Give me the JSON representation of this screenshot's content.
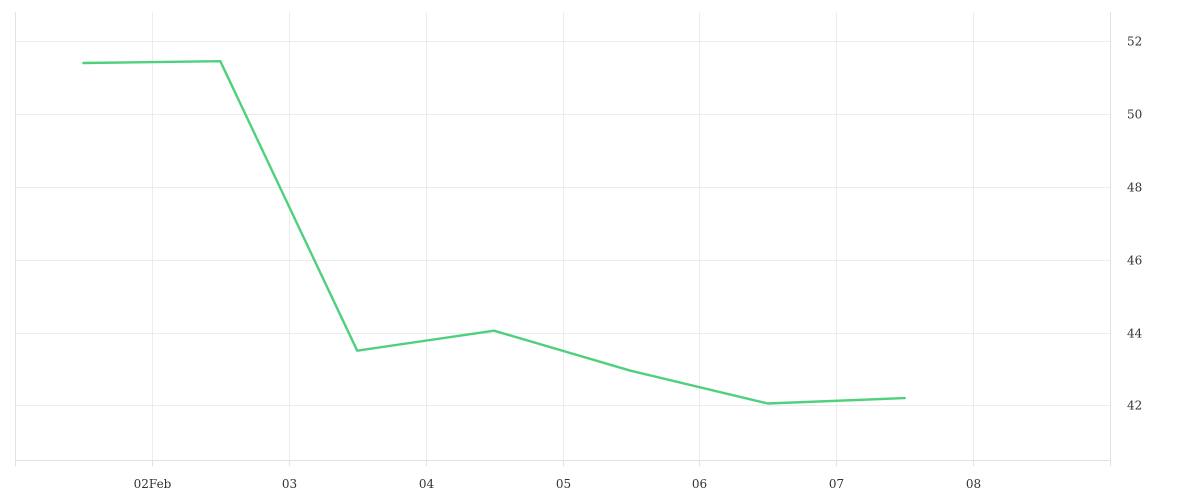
{
  "chart_data": {
    "type": "line",
    "x_ticks": [
      {
        "date": "2024-02-02",
        "label": "02Feb"
      },
      {
        "date": "2024-02-03",
        "label": "03"
      },
      {
        "date": "2024-02-04",
        "label": "04"
      },
      {
        "date": "2024-02-05",
        "label": "05"
      },
      {
        "date": "2024-02-06",
        "label": "06"
      },
      {
        "date": "2024-02-07",
        "label": "07"
      },
      {
        "date": "2024-02-08",
        "label": "08"
      }
    ],
    "xlim": [
      "2024-02-01T00:00",
      "2024-02-09T00:00"
    ],
    "ylim": [
      40.5,
      52.8
    ],
    "y_ticks": [
      42,
      44,
      46,
      48,
      50,
      52
    ],
    "y_axis_position": "right",
    "grid": true,
    "series": [
      {
        "color": "#4fd07d",
        "points": [
          {
            "x": "2024-02-01T12:00",
            "y": 51.4
          },
          {
            "x": "2024-02-02T12:00",
            "y": 51.45
          },
          {
            "x": "2024-02-03T12:00",
            "y": 43.5
          },
          {
            "x": "2024-02-04T12:00",
            "y": 44.05
          },
          {
            "x": "2024-02-05T12:00",
            "y": 42.95
          },
          {
            "x": "2024-02-06T12:00",
            "y": 42.05
          },
          {
            "x": "2024-02-07T12:00",
            "y": 42.2
          }
        ]
      }
    ]
  }
}
